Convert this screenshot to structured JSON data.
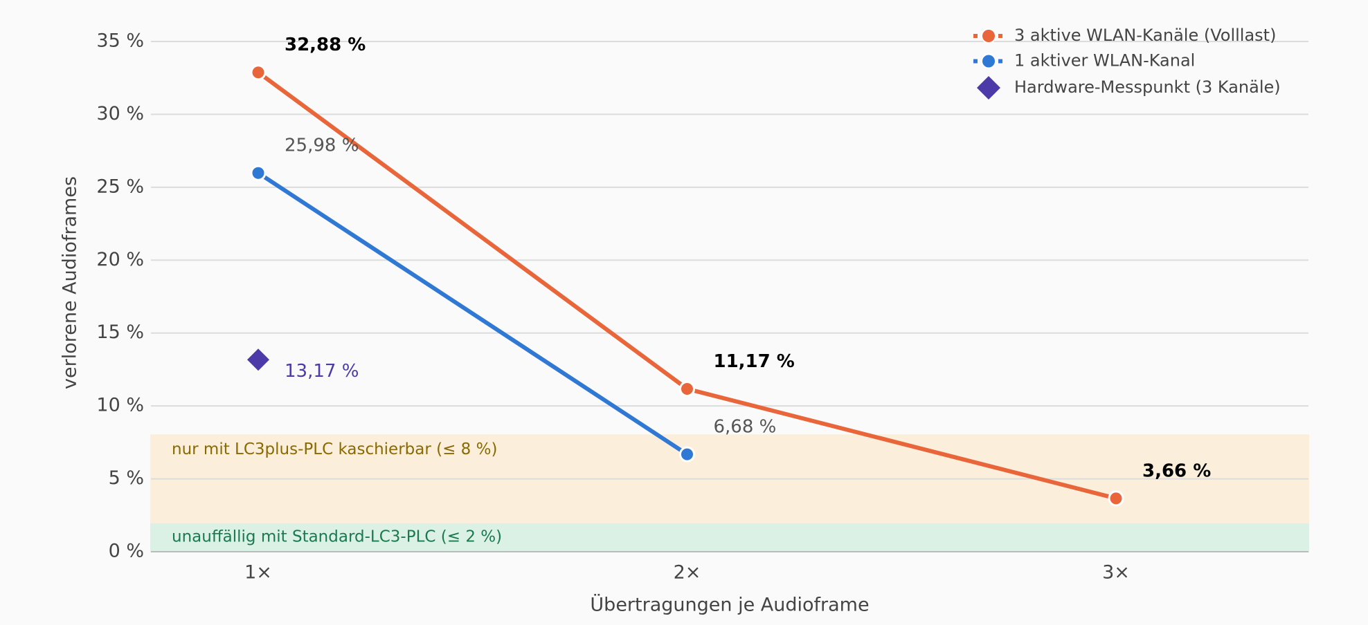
{
  "chart_data": {
    "type": "line",
    "x_label": "Übertragungen je Audioframe",
    "y_label": "verlorene Audioframes",
    "categories": [
      "1×",
      "2×",
      "3×"
    ],
    "series": [
      {
        "name": "3 aktive WLAN-Kanäle (Volllast)",
        "color": "#e8663a",
        "marker": "circle",
        "values": [
          32.88,
          11.17,
          3.66
        ],
        "value_labels": [
          "32,88 %",
          "11,17 %",
          "3,66 %"
        ],
        "label_color": "#000000",
        "label_weight": "bold"
      },
      {
        "name": "1 aktiver WLAN-Kanal",
        "color": "#2f78d4",
        "marker": "circle",
        "values": [
          25.98,
          6.68,
          null
        ],
        "value_labels": [
          "25,98 %",
          "6,68 %",
          null
        ],
        "label_color": "#555555",
        "label_weight": "normal"
      },
      {
        "name": "Hardware-Messpunkt (3 Kanäle)",
        "color": "#4b3aa8",
        "marker": "diamond",
        "values": [
          13.17,
          null,
          null
        ],
        "value_labels": [
          "13,17 %",
          null,
          null
        ],
        "label_color": "#4b3aa8",
        "label_weight": "normal"
      }
    ],
    "bands": [
      {
        "from": 0,
        "to": 2,
        "label": "unauffällig mit Standard-LC3-PLC (≤ 2 %)",
        "color": "#dcf1e6",
        "text_color": "#1a7a4e"
      },
      {
        "from": 2,
        "to": 8,
        "label": "nur mit LC3plus-PLC kaschierbar (≤ 8 %)",
        "color": "#fbefdc",
        "text_color": "#8a6a00"
      }
    ],
    "ylim": [
      0,
      35
    ],
    "yticks": [
      {
        "value": 0,
        "label": "0 %"
      },
      {
        "value": 5,
        "label": "5 %"
      },
      {
        "value": 10,
        "label": "10 %"
      },
      {
        "value": 15,
        "label": "15 %"
      },
      {
        "value": 20,
        "label": "20 %"
      },
      {
        "value": 25,
        "label": "25 %"
      },
      {
        "value": 30,
        "label": "30 %"
      },
      {
        "value": 35,
        "label": "35 %"
      }
    ],
    "grid": true,
    "legend": "upper right"
  }
}
